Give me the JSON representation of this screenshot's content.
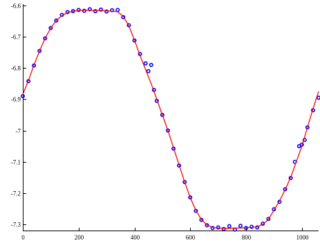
{
  "chart_data": {
    "type": "line",
    "title": "",
    "xlabel": "",
    "ylabel": "",
    "xlim": [
      0,
      1060
    ],
    "ylim": [
      -7.32,
      -6.6
    ],
    "x_ticks": [
      0,
      200,
      400,
      600,
      800,
      1000
    ],
    "x_tick_labels": [
      "0",
      "200",
      "400",
      "600",
      "800",
      "1000"
    ],
    "y_ticks": [
      -6.6,
      -6.7,
      -6.8,
      -6.9,
      -7.0,
      -7.1,
      -7.2,
      -7.3
    ],
    "y_tick_labels": [
      "-6.6",
      "-6.7",
      "-6.8",
      "-6.9",
      "-7",
      "-7.1",
      "-7.2",
      "-7.3"
    ],
    "grid": false,
    "legend": "none",
    "colors": {
      "fit": "#ff0000",
      "data": "#0000ff",
      "axes": "#000000"
    },
    "series": [
      {
        "style": "line",
        "color": "#ff0000",
        "x": [
          0,
          20,
          40,
          60,
          80,
          100,
          120,
          140,
          160,
          180,
          200,
          220,
          240,
          260,
          280,
          300,
          320,
          340,
          360,
          380,
          400,
          420,
          440,
          460,
          480,
          500,
          520,
          540,
          560,
          580,
          600,
          620,
          640,
          660,
          680,
          700,
          720,
          740,
          760,
          780,
          800,
          820,
          840,
          860,
          880,
          900,
          920,
          940,
          960,
          980,
          1000,
          1020,
          1040,
          1060
        ],
        "y": [
          -6.885,
          -6.84,
          -6.79,
          -6.745,
          -6.705,
          -6.672,
          -6.648,
          -6.632,
          -6.623,
          -6.618,
          -6.616,
          -6.615,
          -6.615,
          -6.616,
          -6.616,
          -6.617,
          -6.618,
          -6.62,
          -6.635,
          -6.665,
          -6.71,
          -6.76,
          -6.805,
          -6.85,
          -6.9,
          -6.95,
          -7.0,
          -7.055,
          -7.11,
          -7.165,
          -7.215,
          -7.255,
          -7.285,
          -7.302,
          -7.31,
          -7.312,
          -7.313,
          -7.313,
          -7.312,
          -7.312,
          -7.311,
          -7.31,
          -7.308,
          -7.3,
          -7.285,
          -7.255,
          -7.225,
          -7.19,
          -7.15,
          -7.1,
          -7.05,
          -6.99,
          -6.93,
          -6.875
        ]
      },
      {
        "style": "markers",
        "color": "#0000ff",
        "x": [
          0,
          20,
          40,
          60,
          80,
          100,
          120,
          140,
          160,
          180,
          200,
          220,
          240,
          260,
          280,
          300,
          320,
          340,
          360,
          380,
          400,
          420,
          440,
          450,
          460,
          470,
          480,
          500,
          520,
          540,
          560,
          580,
          600,
          620,
          640,
          660,
          680,
          700,
          720,
          740,
          760,
          780,
          800,
          820,
          840,
          860,
          880,
          900,
          920,
          940,
          960,
          975,
          990,
          1000,
          1010,
          1020,
          1040,
          1060
        ],
        "y": [
          -6.89,
          -6.842,
          -6.792,
          -6.745,
          -6.705,
          -6.672,
          -6.648,
          -6.63,
          -6.621,
          -6.618,
          -6.614,
          -6.617,
          -6.612,
          -6.618,
          -6.613,
          -6.619,
          -6.615,
          -6.614,
          -6.637,
          -6.663,
          -6.712,
          -6.755,
          -6.785,
          -6.81,
          -6.79,
          -6.87,
          -6.905,
          -6.95,
          -7.0,
          -7.058,
          -7.112,
          -7.165,
          -7.214,
          -7.257,
          -7.286,
          -7.303,
          -7.312,
          -7.31,
          -7.315,
          -7.306,
          -7.317,
          -7.305,
          -7.312,
          -7.308,
          -7.31,
          -7.298,
          -7.283,
          -7.252,
          -7.228,
          -7.188,
          -7.152,
          -7.1,
          -7.05,
          -7.045,
          -7.03,
          -6.99,
          -6.935,
          -6.895
        ]
      }
    ]
  }
}
